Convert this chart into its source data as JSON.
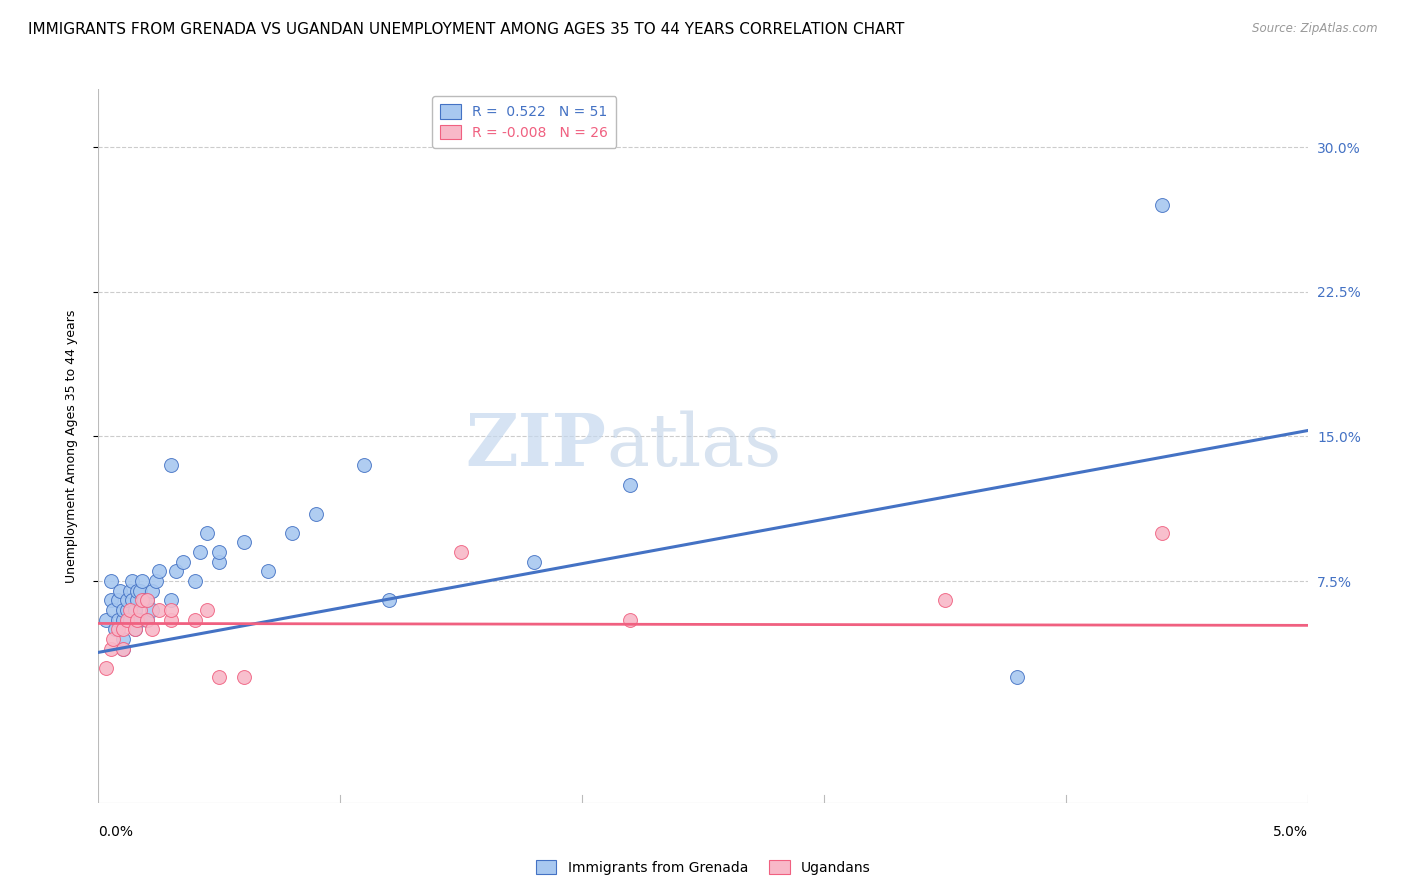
{
  "title": "IMMIGRANTS FROM GRENADA VS UGANDAN UNEMPLOYMENT AMONG AGES 35 TO 44 YEARS CORRELATION CHART",
  "source": "Source: ZipAtlas.com",
  "ylabel": "Unemployment Among Ages 35 to 44 years",
  "y_ticks": [
    0.075,
    0.15,
    0.225,
    0.3
  ],
  "y_tick_labels": [
    "7.5%",
    "15.0%",
    "22.5%",
    "30.0%"
  ],
  "x_lim": [
    0.0,
    0.05
  ],
  "y_lim": [
    -0.04,
    0.33
  ],
  "legend_r1": "R =  0.522   N = 51",
  "legend_r2": "R = -0.008   N = 26",
  "color_blue": "#A8C8F0",
  "color_pink": "#F8B8C8",
  "line_blue": "#4472C4",
  "line_pink": "#F06080",
  "watermark_zip": "ZIP",
  "watermark_atlas": "atlas",
  "blue_scatter_x": [
    0.0003,
    0.0005,
    0.0005,
    0.0006,
    0.0007,
    0.0008,
    0.0008,
    0.0009,
    0.001,
    0.001,
    0.001,
    0.001,
    0.0012,
    0.0012,
    0.0013,
    0.0013,
    0.0014,
    0.0014,
    0.0015,
    0.0015,
    0.0016,
    0.0016,
    0.0017,
    0.0017,
    0.0018,
    0.0019,
    0.002,
    0.002,
    0.0022,
    0.0022,
    0.0024,
    0.0025,
    0.003,
    0.003,
    0.0032,
    0.0035,
    0.004,
    0.0042,
    0.0045,
    0.005,
    0.005,
    0.006,
    0.007,
    0.008,
    0.009,
    0.011,
    0.012,
    0.018,
    0.022,
    0.038,
    0.044
  ],
  "blue_scatter_y": [
    0.055,
    0.065,
    0.075,
    0.06,
    0.05,
    0.055,
    0.065,
    0.07,
    0.04,
    0.045,
    0.055,
    0.06,
    0.06,
    0.065,
    0.055,
    0.07,
    0.065,
    0.075,
    0.05,
    0.06,
    0.065,
    0.07,
    0.055,
    0.07,
    0.075,
    0.065,
    0.055,
    0.065,
    0.06,
    0.07,
    0.075,
    0.08,
    0.065,
    0.135,
    0.08,
    0.085,
    0.075,
    0.09,
    0.1,
    0.085,
    0.09,
    0.095,
    0.08,
    0.1,
    0.11,
    0.135,
    0.065,
    0.085,
    0.125,
    0.025,
    0.27
  ],
  "pink_scatter_x": [
    0.0003,
    0.0005,
    0.0006,
    0.0008,
    0.001,
    0.001,
    0.0012,
    0.0013,
    0.0015,
    0.0016,
    0.0017,
    0.0018,
    0.002,
    0.002,
    0.0022,
    0.0025,
    0.003,
    0.003,
    0.004,
    0.0045,
    0.005,
    0.006,
    0.015,
    0.022,
    0.035,
    0.044
  ],
  "pink_scatter_y": [
    0.03,
    0.04,
    0.045,
    0.05,
    0.04,
    0.05,
    0.055,
    0.06,
    0.05,
    0.055,
    0.06,
    0.065,
    0.055,
    0.065,
    0.05,
    0.06,
    0.055,
    0.06,
    0.055,
    0.06,
    0.025,
    0.025,
    0.09,
    0.055,
    0.065,
    0.1
  ],
  "blue_line_x": [
    0.0,
    0.05
  ],
  "blue_line_y": [
    0.038,
    0.153
  ],
  "pink_line_x": [
    0.0,
    0.05
  ],
  "pink_line_y": [
    0.053,
    0.052
  ],
  "grid_color": "#CCCCCC",
  "title_fontsize": 11,
  "axis_label_fontsize": 9,
  "tick_label_fontsize": 10,
  "watermark_fontsize_zip": 52,
  "watermark_fontsize_atlas": 52
}
